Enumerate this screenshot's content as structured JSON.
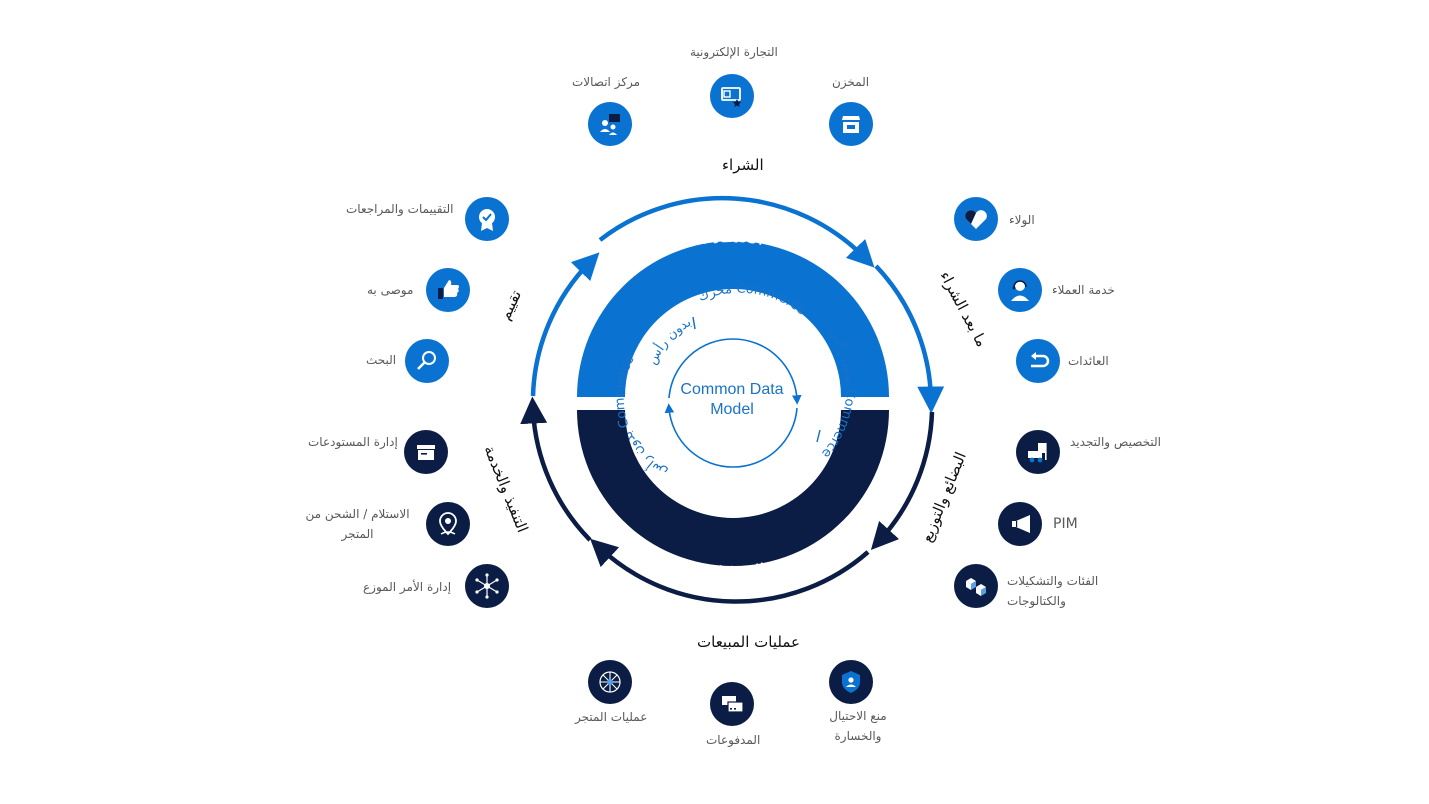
{
  "colors": {
    "blue": "#0a72d1",
    "navy": "#0b1d45",
    "white": "#ffffff"
  },
  "center": {
    "line1": "Common Data",
    "line2": "Model"
  },
  "arcs": {
    "customers": "العمـلاء",
    "operations": "العمليات",
    "engine": "محرك Commerce",
    "headless_top": "بدون رأس",
    "headless_right": "بدون رأس Commerce",
    "headless_bottom": "بدون رأس Commerce"
  },
  "sections": {
    "purchase": "الشراء",
    "post_purchase": "ما بعد الشراء",
    "merch_dist": "البضائع والتوزيع",
    "sales_ops": "عمليات المبيعات",
    "fulfillment": "التنفيذ والخدمة",
    "discovery": "تقييم"
  },
  "nodes": [
    {
      "id": "ecommerce",
      "label": "التجارة الإلكترونية",
      "icon": "ecommerce-icon",
      "color": "blue"
    },
    {
      "id": "contact-center",
      "label": "مركز اتصالات",
      "icon": "contact-center-icon",
      "color": "blue"
    },
    {
      "id": "store",
      "label": "المخزن",
      "icon": "store-icon",
      "color": "blue"
    },
    {
      "id": "ratings",
      "label": "التقييمات والمراجعات",
      "icon": "badge-check-icon",
      "color": "blue"
    },
    {
      "id": "recommend",
      "label": "موصى به",
      "icon": "thumbs-up-icon",
      "color": "blue"
    },
    {
      "id": "search",
      "label": "البحث",
      "icon": "search-icon",
      "color": "blue"
    },
    {
      "id": "loyalty",
      "label": "الولاء",
      "icon": "heart-icon",
      "color": "blue"
    },
    {
      "id": "customer-service",
      "label": "خدمة العملاء",
      "icon": "headset-icon",
      "color": "blue"
    },
    {
      "id": "returns",
      "label": "العائدات",
      "icon": "return-icon",
      "color": "blue"
    },
    {
      "id": "warehouse",
      "label": "إدارة المستودعات",
      "icon": "warehouse-box-icon",
      "color": "navy"
    },
    {
      "id": "pickup",
      "label": "الاستلام / الشحن من المتجر",
      "icon": "map-pin-icon",
      "color": "navy"
    },
    {
      "id": "order-mgmt",
      "label": "إدارة الأمر الموزع",
      "icon": "network-icon",
      "color": "navy"
    },
    {
      "id": "replenish",
      "label": "التخصيص والتجديد",
      "icon": "forklift-icon",
      "color": "navy"
    },
    {
      "id": "pim",
      "label": "PIM",
      "icon": "megaphone-icon",
      "color": "navy"
    },
    {
      "id": "catalogs",
      "label": "الفئات والتشكيلات والكتالوجات",
      "icon": "cubes-icon",
      "color": "navy"
    },
    {
      "id": "store-ops",
      "label": "عمليات المتجر",
      "icon": "hub-icon",
      "color": "navy"
    },
    {
      "id": "payments",
      "label": "المدفوعات",
      "icon": "card-icon",
      "color": "navy"
    },
    {
      "id": "fraud",
      "label": "منع الاحتيال والخسارة",
      "icon": "shield-user-icon",
      "color": "navy"
    }
  ]
}
